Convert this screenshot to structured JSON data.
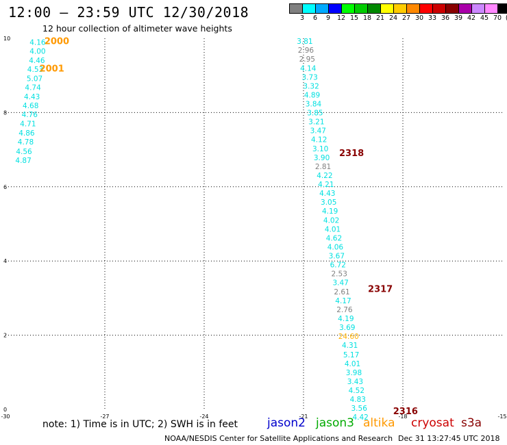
{
  "header": {
    "title": "12:00 – 23:59 UTC 12/30/2018",
    "subtitle": "12 hour collection of altimeter wave heights"
  },
  "color_scale": {
    "unit_label": "(ft)",
    "bins": [
      {
        "label": "3",
        "color": "#808080"
      },
      {
        "label": "6",
        "color": "#00ffff"
      },
      {
        "label": "9",
        "color": "#00aaff"
      },
      {
        "label": "12",
        "color": "#0000ff"
      },
      {
        "label": "15",
        "color": "#00ff00"
      },
      {
        "label": "18",
        "color": "#00cc00"
      },
      {
        "label": "21",
        "color": "#008800"
      },
      {
        "label": "24",
        "color": "#ffff00"
      },
      {
        "label": "27",
        "color": "#ffcc00"
      },
      {
        "label": "30",
        "color": "#ff8800"
      },
      {
        "label": "33",
        "color": "#ff0000"
      },
      {
        "label": "36",
        "color": "#cc0000"
      },
      {
        "label": "39",
        "color": "#880000"
      },
      {
        "label": "42",
        "color": "#aa00aa"
      },
      {
        "label": "45",
        "color": "#cc88ff"
      },
      {
        "label": "70",
        "color": "#ff88ff"
      },
      {
        "label": "",
        "color": "#000000"
      }
    ]
  },
  "chart_data": {
    "type": "scatter",
    "xlim": [
      -30,
      -15
    ],
    "ylim": [
      0,
      10
    ],
    "x_ticks": [
      "-30",
      "-27",
      "-24",
      "-21",
      "-18",
      "-15"
    ],
    "y_ticks": [
      "0",
      "2",
      "4",
      "6",
      "8",
      "10"
    ],
    "grid": true,
    "series": [
      {
        "points": [
          {
            "x": -29.03,
            "y": 9.9,
            "label": "4.16",
            "color": "#00e0e0"
          },
          {
            "x": -29.03,
            "y": 9.66,
            "label": "4.00",
            "color": "#00e0e0"
          },
          {
            "x": -29.05,
            "y": 9.41,
            "label": "4.46",
            "color": "#00e0e0"
          },
          {
            "x": -29.1,
            "y": 9.17,
            "label": "4.53",
            "color": "#00e0e0"
          },
          {
            "x": -29.12,
            "y": 8.92,
            "label": "5.07",
            "color": "#00e0e0"
          },
          {
            "x": -29.17,
            "y": 8.68,
            "label": "4.74",
            "color": "#00e0e0"
          },
          {
            "x": -29.2,
            "y": 8.43,
            "label": "4.43",
            "color": "#00e0e0"
          },
          {
            "x": -29.24,
            "y": 8.19,
            "label": "4.68",
            "color": "#00e0e0"
          },
          {
            "x": -29.27,
            "y": 7.95,
            "label": "4.76",
            "color": "#00e0e0"
          },
          {
            "x": -29.32,
            "y": 7.7,
            "label": "4.71",
            "color": "#00e0e0"
          },
          {
            "x": -29.36,
            "y": 7.45,
            "label": "4.86",
            "color": "#00e0e0"
          },
          {
            "x": -29.39,
            "y": 7.21,
            "label": "4.78",
            "color": "#00e0e0"
          },
          {
            "x": -29.44,
            "y": 6.96,
            "label": "4.56",
            "color": "#00e0e0"
          },
          {
            "x": -29.46,
            "y": 6.72,
            "label": "4.87",
            "color": "#00e0e0"
          }
        ]
      },
      {
        "points": [
          {
            "x": -20.96,
            "y": 9.93,
            "label": "3.81",
            "color": "#00e0e0"
          },
          {
            "x": -20.93,
            "y": 9.69,
            "label": "2.96",
            "color": "#808080"
          },
          {
            "x": -20.89,
            "y": 9.45,
            "label": "2.95",
            "color": "#808080"
          },
          {
            "x": -20.86,
            "y": 9.2,
            "label": "4.14",
            "color": "#00e0e0"
          },
          {
            "x": -20.81,
            "y": 8.96,
            "label": "3.73",
            "color": "#00e0e0"
          },
          {
            "x": -20.77,
            "y": 8.72,
            "label": "3.32",
            "color": "#00e0e0"
          },
          {
            "x": -20.74,
            "y": 8.48,
            "label": "4.89",
            "color": "#00e0e0"
          },
          {
            "x": -20.7,
            "y": 8.24,
            "label": "3.84",
            "color": "#00e0e0"
          },
          {
            "x": -20.65,
            "y": 8.0,
            "label": "3.85",
            "color": "#00e0e0"
          },
          {
            "x": -20.61,
            "y": 7.76,
            "label": "3.21",
            "color": "#00e0e0"
          },
          {
            "x": -20.56,
            "y": 7.52,
            "label": "3.47",
            "color": "#00e0e0"
          },
          {
            "x": -20.53,
            "y": 7.28,
            "label": "4.12",
            "color": "#00e0e0"
          },
          {
            "x": -20.49,
            "y": 7.03,
            "label": "3.10",
            "color": "#00e0e0"
          },
          {
            "x": -20.45,
            "y": 6.79,
            "label": "3.90",
            "color": "#00e0e0"
          },
          {
            "x": -20.41,
            "y": 6.55,
            "label": "2.81",
            "color": "#808080"
          },
          {
            "x": -20.36,
            "y": 6.31,
            "label": "4.22",
            "color": "#00e0e0"
          },
          {
            "x": -20.32,
            "y": 6.07,
            "label": "4.21",
            "color": "#00e0e0"
          },
          {
            "x": -20.28,
            "y": 5.83,
            "label": "4.43",
            "color": "#00e0e0"
          },
          {
            "x": -20.24,
            "y": 5.59,
            "label": "3.05",
            "color": "#00e0e0"
          },
          {
            "x": -20.2,
            "y": 5.35,
            "label": "4.19",
            "color": "#00e0e0"
          },
          {
            "x": -20.16,
            "y": 5.1,
            "label": "4.02",
            "color": "#00e0e0"
          },
          {
            "x": -20.12,
            "y": 4.86,
            "label": "4.01",
            "color": "#00e0e0"
          },
          {
            "x": -20.08,
            "y": 4.62,
            "label": "4.62",
            "color": "#00e0e0"
          },
          {
            "x": -20.04,
            "y": 4.38,
            "label": "4.06",
            "color": "#00e0e0"
          },
          {
            "x": -20.0,
            "y": 4.14,
            "label": "3.67",
            "color": "#00e0e0"
          },
          {
            "x": -19.96,
            "y": 3.9,
            "label": "6.72",
            "color": "#00e0e0"
          },
          {
            "x": -19.92,
            "y": 3.66,
            "label": "2.53",
            "color": "#808080"
          },
          {
            "x": -19.88,
            "y": 3.42,
            "label": "3.47",
            "color": "#00e0e0"
          },
          {
            "x": -19.84,
            "y": 3.17,
            "label": "2.61",
            "color": "#808080"
          },
          {
            "x": -19.8,
            "y": 2.93,
            "label": "4.17",
            "color": "#00e0e0"
          },
          {
            "x": -19.76,
            "y": 2.69,
            "label": "2.76",
            "color": "#808080"
          },
          {
            "x": -19.72,
            "y": 2.45,
            "label": "4.19",
            "color": "#00e0e0"
          },
          {
            "x": -19.68,
            "y": 2.21,
            "label": "3.69",
            "color": "#00e0e0"
          },
          {
            "x": -19.64,
            "y": 1.97,
            "label": "24.60",
            "color": "#ffb000"
          },
          {
            "x": -19.6,
            "y": 1.73,
            "label": "4.31",
            "color": "#00e0e0"
          },
          {
            "x": -19.56,
            "y": 1.48,
            "label": "5.17",
            "color": "#00e0e0"
          },
          {
            "x": -19.52,
            "y": 1.24,
            "label": "4.01",
            "color": "#00e0e0"
          },
          {
            "x": -19.48,
            "y": 1.0,
            "label": "3.98",
            "color": "#00e0e0"
          },
          {
            "x": -19.44,
            "y": 0.76,
            "label": "3.43",
            "color": "#00e0e0"
          },
          {
            "x": -19.4,
            "y": 0.52,
            "label": "4.52",
            "color": "#00e0e0"
          },
          {
            "x": -19.36,
            "y": 0.28,
            "label": "4.83",
            "color": "#00e0e0"
          },
          {
            "x": -19.32,
            "y": 0.04,
            "label": "3.56",
            "color": "#00e0e0"
          },
          {
            "x": -19.28,
            "y": -0.2,
            "label": "4.42",
            "color": "#00e0e0"
          }
        ]
      }
    ],
    "annotations": [
      {
        "x": -28.45,
        "y": 9.94,
        "text": "2000",
        "color": "#ff9900"
      },
      {
        "x": -28.6,
        "y": 9.2,
        "text": "2001",
        "color": "#ff9900"
      },
      {
        "x": -19.55,
        "y": 6.92,
        "text": "2318",
        "color": "#880000"
      },
      {
        "x": -18.68,
        "y": 3.26,
        "text": "2317",
        "color": "#880000"
      },
      {
        "x": -17.92,
        "y": -0.04,
        "text": "2316",
        "color": "#880000"
      }
    ]
  },
  "footer": {
    "note": "note:  1) Time is in UTC;  2) SWH is in feet",
    "satellites": [
      {
        "name": "jason2",
        "color": "#0000cc"
      },
      {
        "name": "jason3",
        "color": "#00aa00"
      },
      {
        "name": "altika",
        "color": "#ff9900"
      },
      {
        "name": "cryosat",
        "color": "#cc0000"
      },
      {
        "name": "s3a",
        "color": "#880000"
      }
    ],
    "credit": "NOAA/NESDIS Center for Satellite Applications and Research",
    "timestamp": "Dec 31 13:27:45 UTC 2018"
  }
}
